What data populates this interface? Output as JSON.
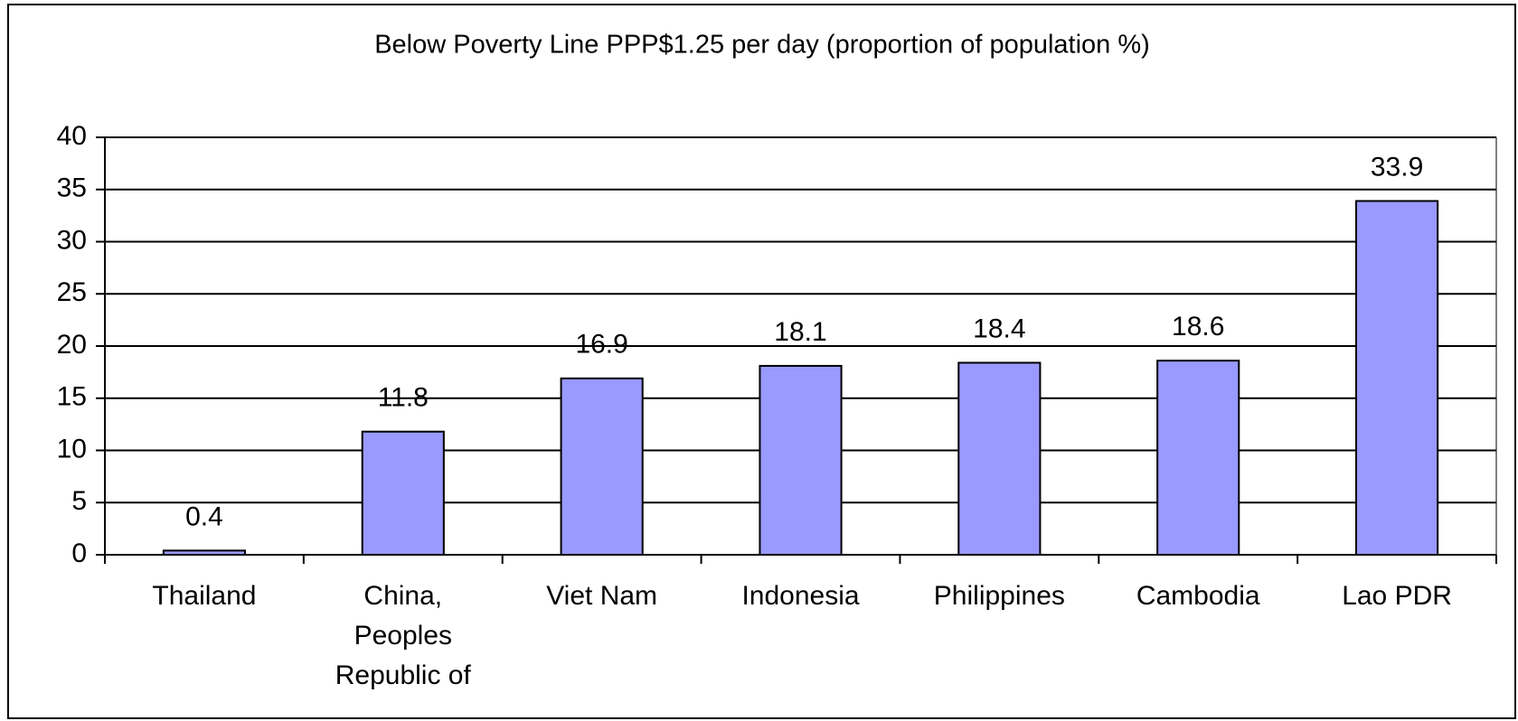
{
  "chart_data": {
    "type": "bar",
    "title": "Below Poverty Line PPP$1.25 per day (proportion of population %)",
    "categories": [
      "Thailand",
      "China, Peoples Republic of",
      "Viet Nam",
      "Indonesia",
      "Philippines",
      "Cambodia",
      "Lao PDR"
    ],
    "values": [
      0.4,
      11.8,
      16.9,
      18.1,
      18.4,
      18.6,
      33.9
    ],
    "color": "#9999ff",
    "ylim": [
      0,
      40
    ],
    "yticks": [
      0,
      5,
      10,
      15,
      20,
      25,
      30,
      35,
      40
    ],
    "grid": true
  }
}
